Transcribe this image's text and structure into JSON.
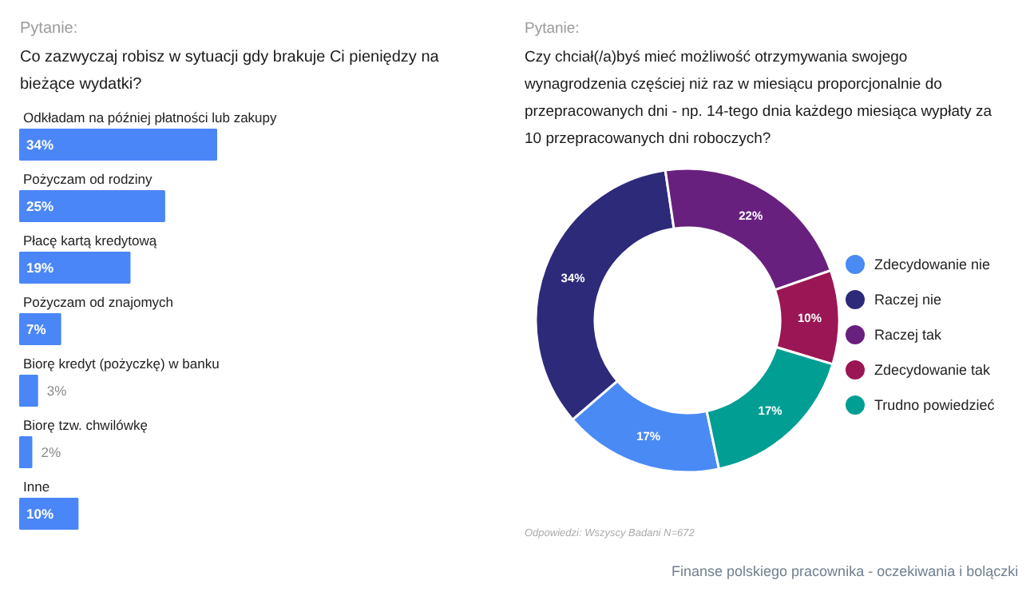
{
  "chart_data": [
    {
      "type": "bar",
      "orientation": "horizontal",
      "title": "Co zazwyczaj robisz w sytuacji gdy brakuje Ci pieniędzy na bieżące wydatki?",
      "annotations": [
        "Pytanie:"
      ],
      "categories": [
        "Odkładam na później płatności lub zakupy",
        "Pożyczam od rodziny",
        "Płacę kartą kredytową",
        "Pożyczam od znajomych",
        "Biorę kredyt (pożyczkę) w banku",
        "Biorę tzw. chwilówkę",
        "Inne"
      ],
      "values": [
        34,
        25,
        19,
        7,
        3,
        2,
        10
      ],
      "value_labels": [
        "34%",
        "25%",
        "19%",
        "7%",
        "3%",
        "2%",
        "10%"
      ],
      "color": "#4a86f7"
    },
    {
      "type": "donut",
      "title": "Czy chciał(/a)byś mieć możliwość otrzymywania swojego wynagrodzenia częściej niż raz w miesiącu proporcjonalnie do przepracowanych dni - np. 14-tego dnia każdego miesiąca wypłaty za 10 przepracowanych dni roboczych?",
      "annotations": [
        "Pytanie:",
        "Odpowiedzi: Wszyscy Badani N=672",
        "Finanse polskiego pracownika - oczekiwania i bolączki"
      ],
      "categories": [
        "Zdecydowanie nie",
        "Raczej nie",
        "Raczej tak",
        "Zdecydowanie tak",
        "Trudno powiedzieć"
      ],
      "values": [
        17,
        34,
        22,
        10,
        17
      ],
      "colors": [
        "#4a8af4",
        "#2e2a7a",
        "#68207e",
        "#9b1654",
        "#009e93"
      ],
      "value_labels": [
        "17%",
        "34%",
        "22%",
        "10%",
        "17%"
      ],
      "legend": "right"
    }
  ]
}
